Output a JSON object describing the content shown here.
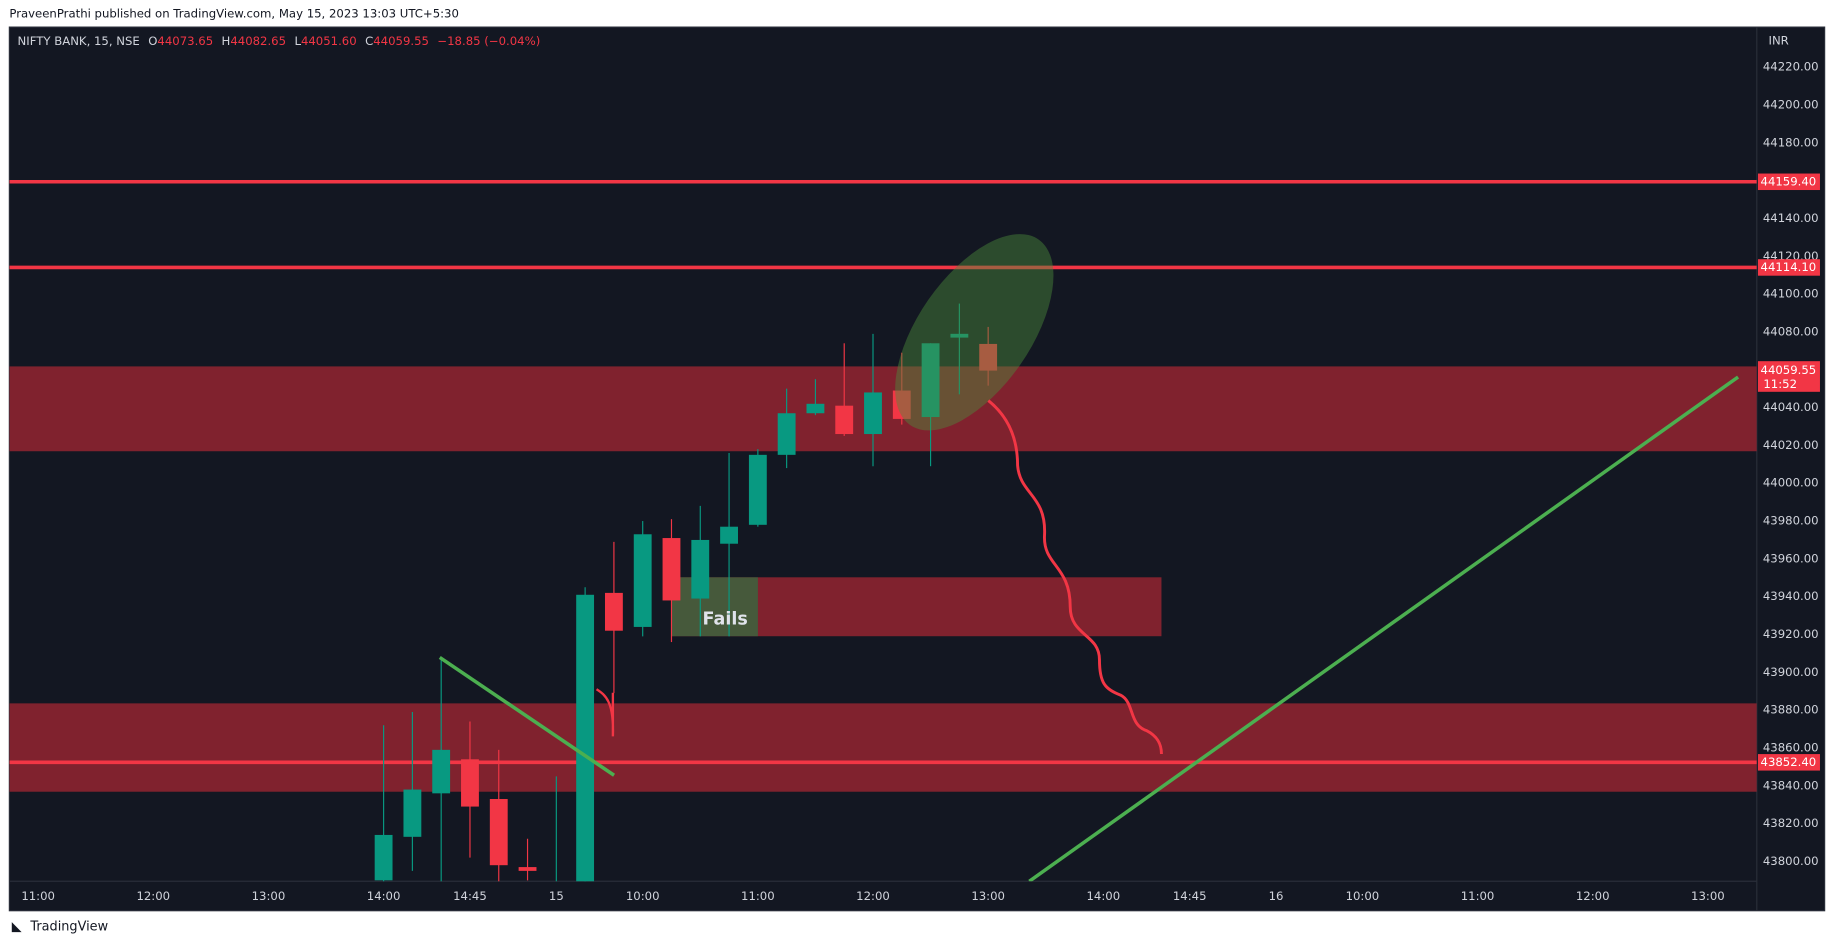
{
  "header": {
    "published": "PraveenPrathi published on TradingView.com, May 15, 2023 13:03 UTC+5:30",
    "footer": "TradingView"
  },
  "chart_data": {
    "type": "candlestick",
    "title": "NIFTY BANK, 15, NSE",
    "ohlc_labels": [
      "O",
      "H",
      "L",
      "C"
    ],
    "ohlc": [
      44073.65,
      44082.65,
      {
        "value": 44051.6,
        "label": "44051.60"
      },
      44059.55
    ],
    "change": "−18.85 (−0.04%)",
    "currency": "INR",
    "x": [
      12,
      13,
      14,
      15,
      16,
      17,
      18,
      19,
      20,
      21,
      22,
      23,
      24,
      25,
      26,
      27,
      28,
      29,
      30,
      31,
      32,
      33
    ],
    "open": [
      43790,
      43813,
      43836,
      43854,
      43833,
      43797,
      43785,
      43785,
      43942,
      43924,
      43971,
      43939,
      43968,
      43978,
      44015,
      44037,
      44041,
      44026,
      44049,
      44035,
      44077,
      44073.65
    ],
    "high": [
      43872,
      43879,
      43907,
      43874,
      43859,
      43812,
      43845,
      43945,
      43969,
      43980,
      43981,
      43988,
      44016,
      44018,
      44050,
      44055,
      44074,
      44079,
      44069,
      44074,
      44095,
      44082.65
    ],
    "low": [
      43785,
      43795,
      43788,
      43802,
      43788,
      43790,
      43780,
      43780,
      43889,
      43919,
      43916,
      43919,
      43919,
      43977,
      44008,
      44036,
      44025,
      44009,
      44031,
      44009,
      44047,
      44051.6
    ],
    "close": [
      43814,
      43838,
      43859,
      43829,
      43798,
      43795,
      43788,
      43941,
      43922,
      43973,
      43938,
      43970,
      43977,
      44015,
      44037,
      44042,
      44026,
      44048,
      44034,
      44074,
      44079,
      44059.55
    ],
    "up_color": "#089981",
    "down_color": "#f23645",
    "xlim": [
      -1,
      59.7
    ],
    "xticks": [
      {
        "value": 0,
        "label": "11:00"
      },
      {
        "value": 4,
        "label": "12:00"
      },
      {
        "value": 8,
        "label": "13:00"
      },
      {
        "value": 12,
        "label": "14:00"
      },
      {
        "value": 15,
        "label": "14:45"
      },
      {
        "value": 18,
        "label": "15"
      },
      {
        "value": 21,
        "label": "10:00"
      },
      {
        "value": 25,
        "label": "11:00"
      },
      {
        "value": 29,
        "label": "12:00"
      },
      {
        "value": 33,
        "label": "13:00"
      },
      {
        "value": 37,
        "label": "14:00"
      },
      {
        "value": 40,
        "label": "14:45"
      },
      {
        "value": 43,
        "label": "16"
      },
      {
        "value": 46,
        "label": "10:00"
      },
      {
        "value": 50,
        "label": "11:00"
      },
      {
        "value": 54,
        "label": "12:00"
      },
      {
        "value": 58,
        "label": "13:00"
      }
    ],
    "ylim": [
      43789.5,
      44241.2
    ],
    "yticks": [
      {
        "value": 44220,
        "label": "44220.00"
      },
      {
        "value": 44200,
        "label": "44200.00"
      },
      {
        "value": 44180,
        "label": "44180.00"
      },
      {
        "value": 44160,
        "label": "44160.00"
      },
      {
        "value": 44140,
        "label": "44140.00"
      },
      {
        "value": 44120,
        "label": "44120.00"
      },
      {
        "value": 44100,
        "label": "44100.00"
      },
      {
        "value": 44080,
        "label": "44080.00"
      },
      {
        "value": 44060,
        "label": "44060.00"
      },
      {
        "value": 44040,
        "label": "44040.00"
      },
      {
        "value": 44020,
        "label": "44020.00"
      },
      {
        "value": 44000,
        "label": "44000.00"
      },
      {
        "value": 43980,
        "label": "43980.00"
      },
      {
        "value": 43960,
        "label": "43960.00"
      },
      {
        "value": 43940,
        "label": "43940.00"
      },
      {
        "value": 43920,
        "label": "43920.00"
      },
      {
        "value": 43900,
        "label": "43900.00"
      },
      {
        "value": 43880,
        "label": "43880.00"
      },
      {
        "value": 43860,
        "label": "43860.00"
      },
      {
        "value": 43840,
        "label": "43840.00"
      },
      {
        "value": 43820,
        "label": "43820.00"
      },
      {
        "value": 43800,
        "label": "43800.00"
      }
    ],
    "grid": false,
    "levels": [
      {
        "value": 44159.4,
        "label": "44159.40"
      },
      {
        "value": 44114.1,
        "label": "44114.10"
      },
      {
        "value": 43852.4,
        "label": "43852.40"
      }
    ],
    "level_color": "#f23645",
    "last_price": 44059.55,
    "countdown": "11:52",
    "annotation": "Fails"
  }
}
